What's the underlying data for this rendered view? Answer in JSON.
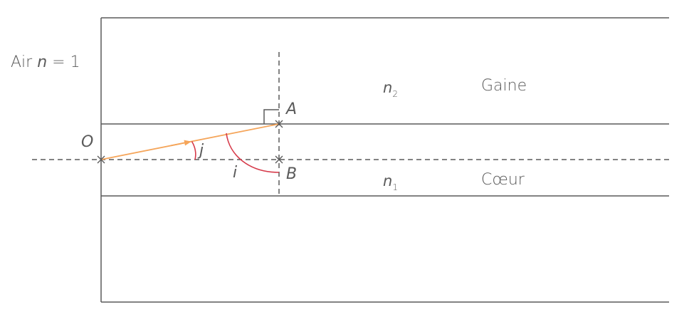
{
  "labels": {
    "air_prefix": "Air ",
    "air_n": "n",
    "air_value": " = 1",
    "cladding": "Gaine",
    "core": "Cœur",
    "n_cladding_symbol": "n",
    "n_cladding_sub": "2",
    "n_core_symbol": "n",
    "n_core_sub": "1",
    "point_O": "O",
    "point_A": "A",
    "point_B": "B",
    "angle_j": "j",
    "angle_i": "i"
  },
  "colors": {
    "lines": "#5a5a5a",
    "ray": "#f5a55a",
    "angle_arcs": "#d63a4a"
  }
}
